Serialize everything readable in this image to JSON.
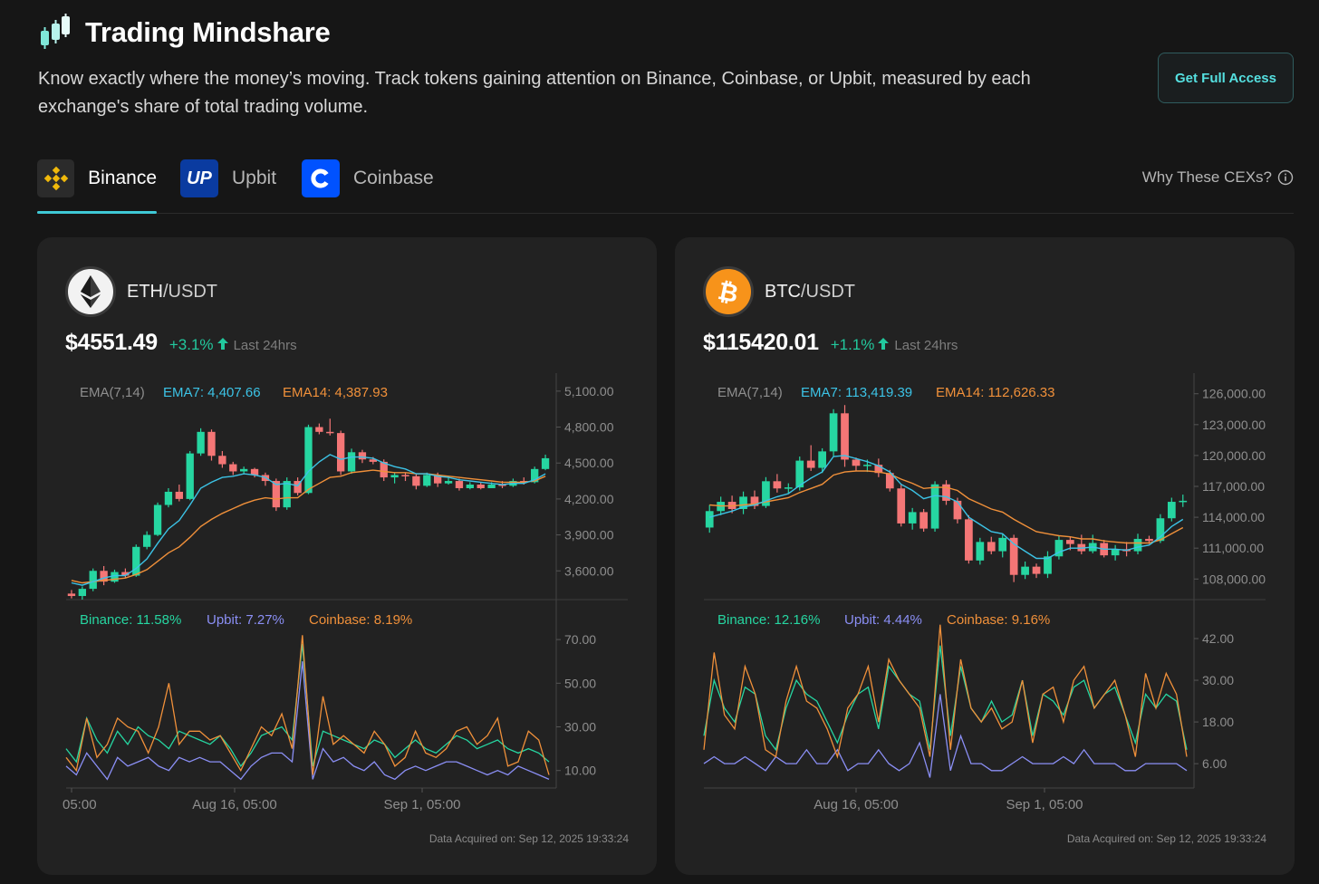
{
  "header": {
    "title": "Trading Mindshare",
    "description": "Know exactly where the money’s moving. Track tokens gaining attention on Binance, Coinbase, or Upbit, measured by each exchange's share of total trading volume.",
    "cta_label": "Get Full Access",
    "icon": "stacked-candles-logo"
  },
  "tabs": [
    {
      "label": "Binance",
      "icon": "binance-icon",
      "active": true
    },
    {
      "label": "Upbit",
      "icon": "upbit-icon",
      "icon_text": "UP",
      "active": false
    },
    {
      "label": "Coinbase",
      "icon": "coinbase-icon",
      "active": false
    }
  ],
  "why_label": "Why These CEXs?",
  "colors": {
    "up": "#26d6a1",
    "down": "#f47676",
    "ema7": "#3cc3e6",
    "ema14": "#f0903a",
    "binance": "#26d6a1",
    "upbit": "#8b8ff5",
    "coinbase": "#f0903a"
  },
  "cards": [
    {
      "base": "ETH",
      "quote": "/USDT",
      "coin_icon": "ethereum-icon",
      "price": "$4551.49",
      "change": "+3.1%",
      "period": "Last 24hrs",
      "ema_label": "EMA(7,14)",
      "ema7_label": "EMA7: 4,407.66",
      "ema14_label": "EMA14: 4,387.93",
      "share_labels": {
        "binance": "Binance: 11.58%",
        "upbit": "Upbit: 7.27%",
        "coinbase": "Coinbase: 8.19%"
      },
      "acquired": "Data Acquired on: Sep 12, 2025 19:33:24",
      "chart_data": {
        "type": "candlestick",
        "y_ticks": [
          "5,100.00",
          "4,800.00",
          "4,500.00",
          "4,200.00",
          "3,900.00",
          "3,600.00"
        ],
        "ylim": [
          3360,
          5250
        ],
        "x_ticks": [
          "05:00",
          "Aug 16, 05:00",
          "Sep 1, 05:00"
        ],
        "candles": [
          [
            3410,
            3390,
            3440,
            3370
          ],
          [
            3390,
            3450,
            3470,
            3360
          ],
          [
            3450,
            3600,
            3620,
            3430
          ],
          [
            3600,
            3510,
            3640,
            3480
          ],
          [
            3510,
            3590,
            3610,
            3500
          ],
          [
            3590,
            3560,
            3620,
            3540
          ],
          [
            3560,
            3800,
            3820,
            3550
          ],
          [
            3800,
            3900,
            3930,
            3780
          ],
          [
            3900,
            4150,
            4170,
            3890
          ],
          [
            4150,
            4260,
            4290,
            4130
          ],
          [
            4260,
            4200,
            4320,
            4180
          ],
          [
            4200,
            4580,
            4600,
            4190
          ],
          [
            4580,
            4760,
            4790,
            4560
          ],
          [
            4760,
            4560,
            4780,
            4520
          ],
          [
            4560,
            4490,
            4600,
            4460
          ],
          [
            4490,
            4430,
            4510,
            4400
          ],
          [
            4430,
            4450,
            4470,
            4410
          ],
          [
            4450,
            4400,
            4460,
            4380
          ],
          [
            4400,
            4350,
            4420,
            4310
          ],
          [
            4350,
            4130,
            4370,
            4100
          ],
          [
            4130,
            4350,
            4380,
            4110
          ],
          [
            4350,
            4250,
            4380,
            4230
          ],
          [
            4250,
            4800,
            4820,
            4240
          ],
          [
            4800,
            4760,
            4830,
            4740
          ],
          [
            4760,
            4750,
            4870,
            4730
          ],
          [
            4750,
            4430,
            4770,
            4400
          ],
          [
            4430,
            4590,
            4620,
            4410
          ],
          [
            4590,
            4530,
            4610,
            4500
          ],
          [
            4530,
            4510,
            4550,
            4490
          ],
          [
            4510,
            4380,
            4530,
            4350
          ],
          [
            4380,
            4400,
            4420,
            4330
          ],
          [
            4400,
            4390,
            4420,
            4350
          ],
          [
            4390,
            4310,
            4410,
            4280
          ],
          [
            4310,
            4400,
            4420,
            4300
          ],
          [
            4400,
            4330,
            4420,
            4300
          ],
          [
            4330,
            4350,
            4380,
            4320
          ],
          [
            4350,
            4290,
            4370,
            4270
          ],
          [
            4290,
            4320,
            4340,
            4280
          ],
          [
            4320,
            4290,
            4340,
            4280
          ],
          [
            4290,
            4320,
            4340,
            4290
          ],
          [
            4320,
            4310,
            4350,
            4290
          ],
          [
            4310,
            4350,
            4370,
            4300
          ],
          [
            4350,
            4340,
            4380,
            4320
          ],
          [
            4340,
            4450,
            4470,
            4330
          ],
          [
            4450,
            4540,
            4570,
            4440
          ]
        ],
        "ema7": [
          3500,
          3480,
          3510,
          3540,
          3560,
          3560,
          3620,
          3700,
          3830,
          3950,
          4020,
          4150,
          4290,
          4340,
          4380,
          4390,
          4410,
          4400,
          4380,
          4320,
          4330,
          4310,
          4430,
          4510,
          4570,
          4530,
          4550,
          4550,
          4540,
          4500,
          4470,
          4450,
          4410,
          4410,
          4390,
          4380,
          4360,
          4350,
          4340,
          4330,
          4320,
          4330,
          4330,
          4360,
          4410
        ],
        "ema14": [
          3520,
          3500,
          3510,
          3520,
          3530,
          3540,
          3570,
          3610,
          3680,
          3750,
          3800,
          3880,
          3970,
          4030,
          4080,
          4120,
          4160,
          4190,
          4210,
          4200,
          4210,
          4210,
          4280,
          4330,
          4380,
          4390,
          4420,
          4430,
          4440,
          4430,
          4420,
          4420,
          4410,
          4410,
          4400,
          4390,
          4380,
          4370,
          4360,
          4350,
          4340,
          4340,
          4340,
          4350,
          4390
        ],
        "share_y_ticks": [
          "70.00",
          "50.00",
          "30.00",
          "10.00"
        ],
        "share_ylim": [
          2,
          80
        ],
        "binance": [
          20,
          14,
          34,
          24,
          18,
          28,
          22,
          30,
          26,
          24,
          20,
          28,
          26,
          24,
          22,
          26,
          20,
          12,
          18,
          26,
          28,
          30,
          24,
          68,
          12,
          28,
          26,
          24,
          22,
          20,
          24,
          22,
          16,
          20,
          24,
          20,
          18,
          22,
          26,
          24,
          20,
          22,
          24,
          20,
          18,
          20,
          18,
          14
        ],
        "upbit": [
          12,
          8,
          18,
          12,
          6,
          16,
          12,
          14,
          16,
          12,
          10,
          16,
          14,
          16,
          14,
          14,
          10,
          6,
          12,
          16,
          18,
          18,
          14,
          60,
          6,
          20,
          14,
          16,
          12,
          10,
          14,
          8,
          6,
          10,
          12,
          10,
          12,
          14,
          14,
          12,
          10,
          8,
          10,
          8,
          12,
          10,
          8,
          6
        ],
        "coinbase": [
          16,
          10,
          34,
          16,
          22,
          34,
          30,
          28,
          18,
          30,
          50,
          22,
          28,
          28,
          24,
          26,
          18,
          10,
          20,
          30,
          26,
          36,
          20,
          72,
          8,
          44,
          22,
          26,
          22,
          18,
          28,
          22,
          12,
          16,
          28,
          18,
          16,
          20,
          28,
          30,
          22,
          26,
          34,
          12,
          14,
          28,
          24,
          8
        ]
      }
    },
    {
      "base": "BTC",
      "quote": "/USDT",
      "coin_icon": "bitcoin-icon",
      "price": "$115420.01",
      "change": "+1.1%",
      "period": "Last 24hrs",
      "ema_label": "EMA(7,14)",
      "ema7_label": "EMA7: 113,419.39",
      "ema14_label": "EMA14: 112,626.33",
      "share_labels": {
        "binance": "Binance: 12.16%",
        "upbit": "Upbit: 4.44%",
        "coinbase": "Coinbase: 9.16%"
      },
      "acquired": "Data Acquired on: Sep 12, 2025 19:33:24",
      "chart_data": {
        "type": "candlestick",
        "y_ticks": [
          "126,000.00",
          "123,000.00",
          "120,000.00",
          "117,000.00",
          "114,000.00",
          "111,000.00",
          "108,000.00"
        ],
        "ylim": [
          106000,
          128000
        ],
        "x_ticks": [
          "Aug 16, 05:00",
          "Sep 1, 05:00"
        ],
        "candles": [
          [
            113000,
            114600,
            115200,
            112500
          ],
          [
            114600,
            115500,
            116000,
            114200
          ],
          [
            115500,
            114800,
            116100,
            114400
          ],
          [
            114800,
            116000,
            116500,
            114300
          ],
          [
            116000,
            115100,
            116600,
            114800
          ],
          [
            115100,
            117500,
            117900,
            114900
          ],
          [
            117500,
            116800,
            118200,
            116400
          ],
          [
            116800,
            116900,
            117300,
            116300
          ],
          [
            116900,
            119500,
            119900,
            116600
          ],
          [
            119500,
            118800,
            121000,
            118500
          ],
          [
            118800,
            120400,
            120700,
            118300
          ],
          [
            120400,
            124100,
            124500,
            119900
          ],
          [
            124100,
            119600,
            124900,
            118900
          ],
          [
            119600,
            119000,
            119800,
            118500
          ],
          [
            119000,
            119100,
            119600,
            118400
          ],
          [
            119100,
            118300,
            119700,
            117900
          ],
          [
            118300,
            116800,
            118600,
            116500
          ],
          [
            116800,
            113400,
            117200,
            113100
          ],
          [
            113400,
            114500,
            114900,
            112800
          ],
          [
            114500,
            112900,
            114800,
            112600
          ],
          [
            112900,
            117200,
            117500,
            112600
          ],
          [
            117200,
            115600,
            117600,
            115200
          ],
          [
            115600,
            113800,
            115900,
            113400
          ],
          [
            113800,
            109800,
            114200,
            109500
          ],
          [
            109800,
            111600,
            112000,
            109400
          ],
          [
            111600,
            110700,
            112100,
            110400
          ],
          [
            110700,
            112000,
            112400,
            110100
          ],
          [
            112000,
            108400,
            112300,
            107700
          ],
          [
            108400,
            109200,
            109700,
            108000
          ],
          [
            109200,
            108500,
            109500,
            108100
          ],
          [
            108500,
            110200,
            110700,
            108100
          ],
          [
            110200,
            111800,
            112200,
            109900
          ],
          [
            111800,
            111400,
            112100,
            110800
          ],
          [
            111400,
            110700,
            112300,
            110400
          ],
          [
            110700,
            111500,
            112300,
            110500
          ],
          [
            111500,
            110300,
            111800,
            110100
          ],
          [
            110300,
            110900,
            111300,
            109800
          ],
          [
            110900,
            110700,
            111600,
            110200
          ],
          [
            110700,
            111900,
            112400,
            110400
          ],
          [
            111900,
            111700,
            112200,
            111400
          ],
          [
            111700,
            113900,
            114300,
            111500
          ],
          [
            113900,
            115500,
            115900,
            113600
          ],
          [
            115500,
            115600,
            116200,
            115000
          ]
        ],
        "ema7": [
          114000,
          114300,
          114600,
          115000,
          115200,
          115600,
          116000,
          116300,
          117100,
          117800,
          118400,
          119900,
          120000,
          119700,
          119400,
          119000,
          118400,
          117200,
          116600,
          115800,
          116100,
          116000,
          115500,
          114000,
          113300,
          112600,
          112400,
          111400,
          110700,
          110000,
          110000,
          110600,
          111000,
          111000,
          111100,
          110900,
          110900,
          110800,
          111100,
          111300,
          112100,
          113100,
          113800
        ],
        "ema14": [
          115200,
          115100,
          115100,
          115200,
          115300,
          115500,
          115700,
          115900,
          116400,
          116800,
          117200,
          118100,
          118400,
          118500,
          118500,
          118400,
          118200,
          117700,
          117300,
          116800,
          116900,
          116900,
          116600,
          115800,
          115300,
          114800,
          114500,
          113800,
          113200,
          112600,
          112400,
          112200,
          112100,
          111900,
          111900,
          111700,
          111600,
          111500,
          111500,
          111500,
          111800,
          112400,
          113000
        ],
        "share_y_ticks": [
          "42.00",
          "30.00",
          "18.00",
          "6.00"
        ],
        "share_ylim": [
          -1,
          48
        ],
        "binance": [
          14,
          30,
          22,
          18,
          28,
          26,
          14,
          10,
          22,
          30,
          26,
          24,
          18,
          12,
          20,
          26,
          28,
          16,
          34,
          30,
          26,
          24,
          10,
          40,
          14,
          34,
          22,
          18,
          24,
          18,
          20,
          30,
          14,
          26,
          24,
          20,
          28,
          30,
          22,
          26,
          28,
          20,
          12,
          26,
          22,
          26,
          24,
          10
        ],
        "upbit": [
          6,
          8,
          6,
          6,
          8,
          6,
          4,
          8,
          6,
          6,
          10,
          6,
          6,
          10,
          4,
          6,
          6,
          10,
          6,
          4,
          6,
          12,
          2,
          26,
          4,
          14,
          6,
          6,
          4,
          4,
          6,
          8,
          6,
          6,
          6,
          8,
          6,
          10,
          6,
          6,
          6,
          4,
          4,
          6,
          6,
          6,
          6,
          4
        ],
        "coinbase": [
          10,
          38,
          20,
          16,
          34,
          26,
          10,
          8,
          24,
          34,
          24,
          22,
          16,
          8,
          22,
          26,
          34,
          18,
          36,
          30,
          26,
          22,
          8,
          46,
          10,
          36,
          22,
          18,
          22,
          16,
          18,
          30,
          12,
          26,
          28,
          18,
          30,
          34,
          22,
          26,
          30,
          20,
          8,
          32,
          22,
          32,
          26,
          8
        ]
      }
    }
  ]
}
